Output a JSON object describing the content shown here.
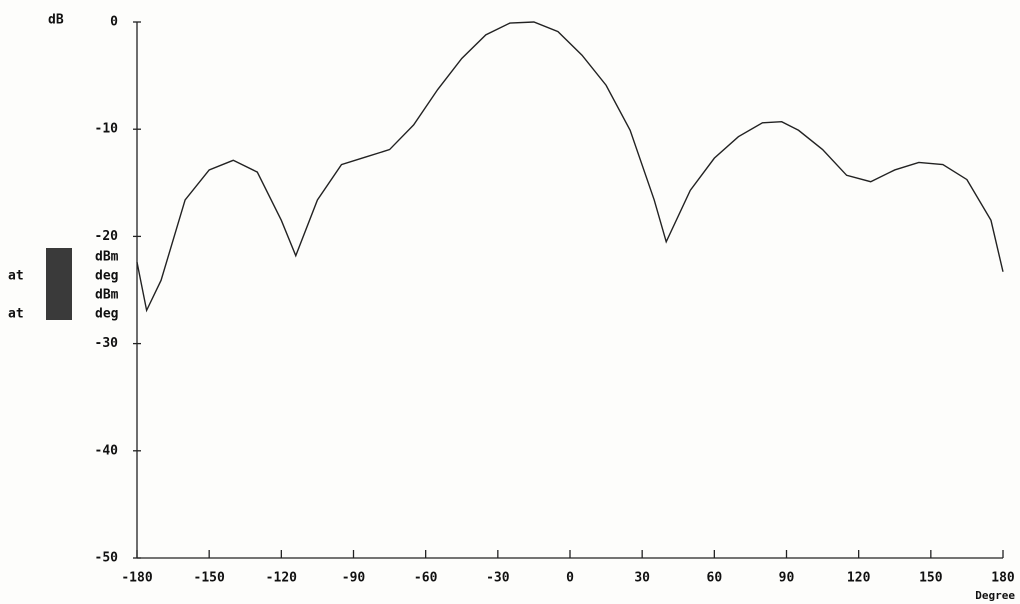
{
  "chart_data": {
    "type": "line",
    "y_label": "dB",
    "x_label": "Degree",
    "x": [
      -180,
      -176,
      -170,
      -160,
      -150,
      -140,
      -130,
      -120,
      -114,
      -105,
      -95,
      -85,
      -75,
      -65,
      -55,
      -45,
      -35,
      -25,
      -15,
      -5,
      5,
      15,
      25,
      35,
      40,
      50,
      60,
      70,
      80,
      88,
      95,
      105,
      115,
      125,
      135,
      145,
      155,
      165,
      175,
      180
    ],
    "series": [
      {
        "color": "#222222",
        "values": [
          -22.4,
          -26.9,
          -24.1,
          -16.6,
          -13.8,
          -12.9,
          -14.0,
          -18.5,
          -21.8,
          -16.6,
          -13.3,
          -12.6,
          -11.9,
          -9.6,
          -6.3,
          -3.4,
          -1.2,
          -0.1,
          0,
          -0.9,
          -3.1,
          -5.9,
          -10.1,
          -16.6,
          -20.5,
          -15.7,
          -12.7,
          -10.7,
          -9.4,
          -9.3,
          -10.1,
          -11.9,
          -14.3,
          -14.9,
          -13.8,
          -13.1,
          -13.3,
          -14.7,
          -18.5,
          -23.3
        ]
      }
    ],
    "xlim": [
      -180,
      180
    ],
    "ylim": [
      -50,
      0
    ],
    "xticks": [
      -180,
      -150,
      -120,
      -90,
      -60,
      -30,
      0,
      30,
      60,
      90,
      120,
      150,
      180
    ],
    "yticks": [
      0,
      -10,
      -20,
      -30,
      -40,
      -50
    ],
    "readout_units": [
      "dBm",
      "deg",
      "dBm",
      "deg"
    ],
    "readout_prefix": [
      "at",
      "at"
    ]
  }
}
